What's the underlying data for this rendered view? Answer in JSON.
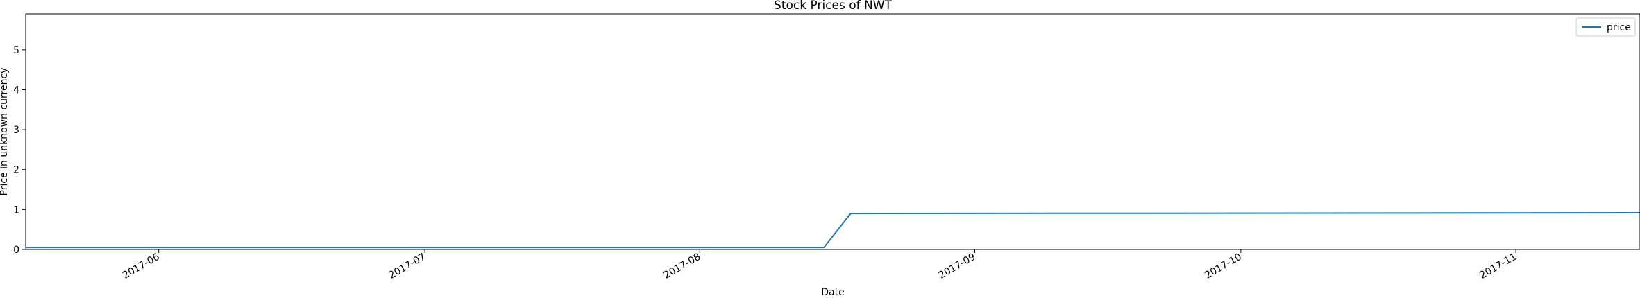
{
  "chart_data": {
    "type": "line",
    "title": "Stock Prices of NWT",
    "xlabel": "Date",
    "ylabel": "Price in unknown currency",
    "xlim": [
      "2017-05-17",
      "2017-11-15"
    ],
    "ylim": [
      0,
      5.9
    ],
    "x_ticks": [
      "2017-06",
      "2017-07",
      "2017-08",
      "2017-09",
      "2017-10",
      "2017-11"
    ],
    "y_ticks": [
      0,
      1,
      2,
      3,
      4,
      5
    ],
    "grid": false,
    "legend": {
      "position": "top-right",
      "entries": [
        "price"
      ]
    },
    "series": [
      {
        "name": "price",
        "color": "#1f77b4",
        "x": [
          "2017-05-17",
          "2017-08-15",
          "2017-08-18",
          "2017-11-15"
        ],
        "values": [
          0.05,
          0.05,
          0.9,
          0.92
        ]
      }
    ]
  }
}
